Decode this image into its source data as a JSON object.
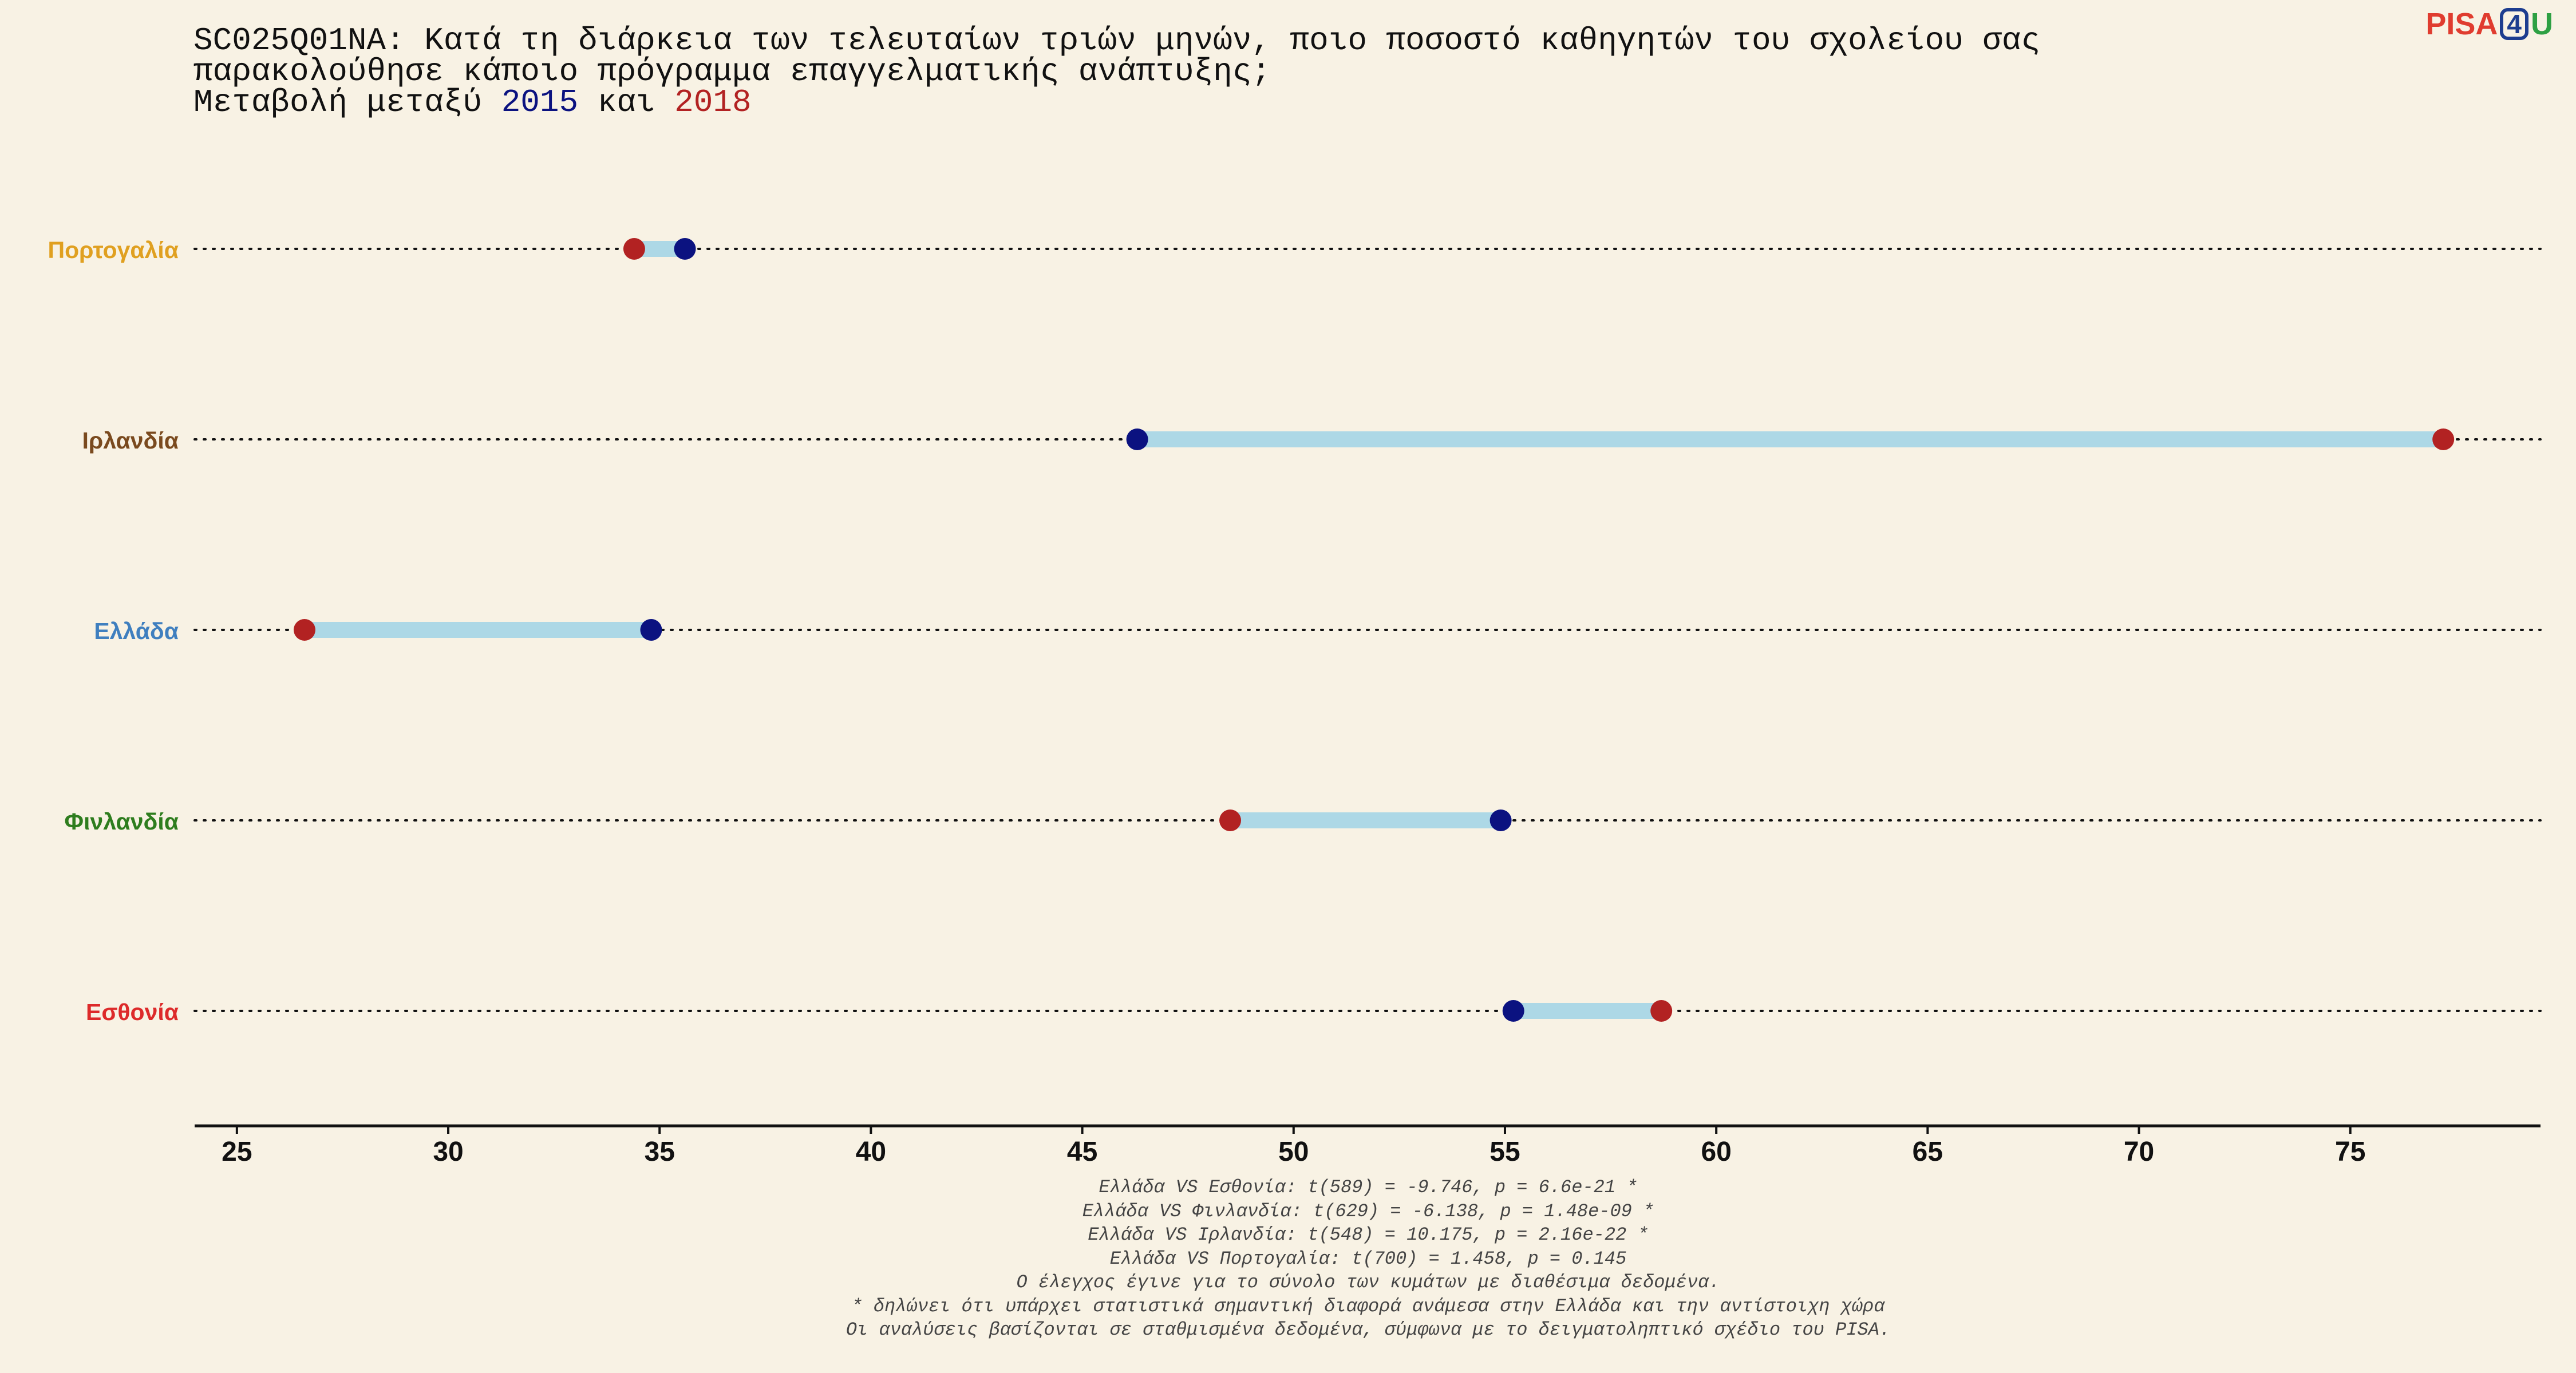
{
  "title": {
    "line1": "SC025Q01NA: Κατά τη διάρκεια των τελευταίων τριών μηνών, ποιο ποσοστό καθηγητών του σχολείου σας",
    "line2": "παρακολούθησε κάποιο πρόγραμμα επαγγελματικής ανάπτυξης;",
    "line3_prefix": "Μεταβολή μεταξύ ",
    "year_a": "2015",
    "line3_mid": " και ",
    "year_b": "2018"
  },
  "logo": {
    "part1": "PISA",
    "part2": "4",
    "part3": "U"
  },
  "chart_data": {
    "type": "dumbbell",
    "xlim": [
      24,
      79.5
    ],
    "xticks": [
      25,
      30,
      35,
      40,
      45,
      50,
      55,
      60,
      65,
      70,
      75
    ],
    "grid": false,
    "series_colors": {
      "2015": "#0b1280",
      "2018": "#b22222"
    },
    "connector_color": "#add8e6",
    "rows": [
      {
        "label": "Πορτογαλία",
        "color": "#e0a020",
        "v2015": 35.6,
        "v2018": 34.4
      },
      {
        "label": "Ιρλανδία",
        "color": "#7a4a1e",
        "v2015": 46.3,
        "v2018": 77.2
      },
      {
        "label": "Ελλάδα",
        "color": "#3f7fbf",
        "v2015": 34.8,
        "v2018": 26.6
      },
      {
        "label": "Φινλανδία",
        "color": "#2e7d1e",
        "v2015": 54.9,
        "v2018": 48.5
      },
      {
        "label": "Εσθονία",
        "color": "#dd2a2a",
        "v2015": 55.2,
        "v2018": 58.7
      }
    ]
  },
  "notes": [
    "Ελλάδα VS Εσθονία: t(589) = -9.746, p = 6.6e-21 *",
    "Ελλάδα VS Φινλανδία: t(629) = -6.138, p = 1.48e-09 *",
    "Ελλάδα VS Ιρλανδία: t(548) = 10.175, p = 2.16e-22 *",
    "Ελλάδα VS Πορτογαλία: t(700) = 1.458, p = 0.145",
    "Ο έλεγχος έγινε για το σύνολο των κυμάτων με διαθέσιμα δεδομένα.",
    "* δηλώνει ότι υπάρχει στατιστικά σημαντική διαφορά ανάμεσα στην Ελλάδα και την αντίστοιχη χώρα",
    "Οι αναλύσεις βασίζονται σε σταθμισμένα δεδομένα, σύμφωνα με το δειγματοληπτικό σχέδιο του PISA."
  ]
}
